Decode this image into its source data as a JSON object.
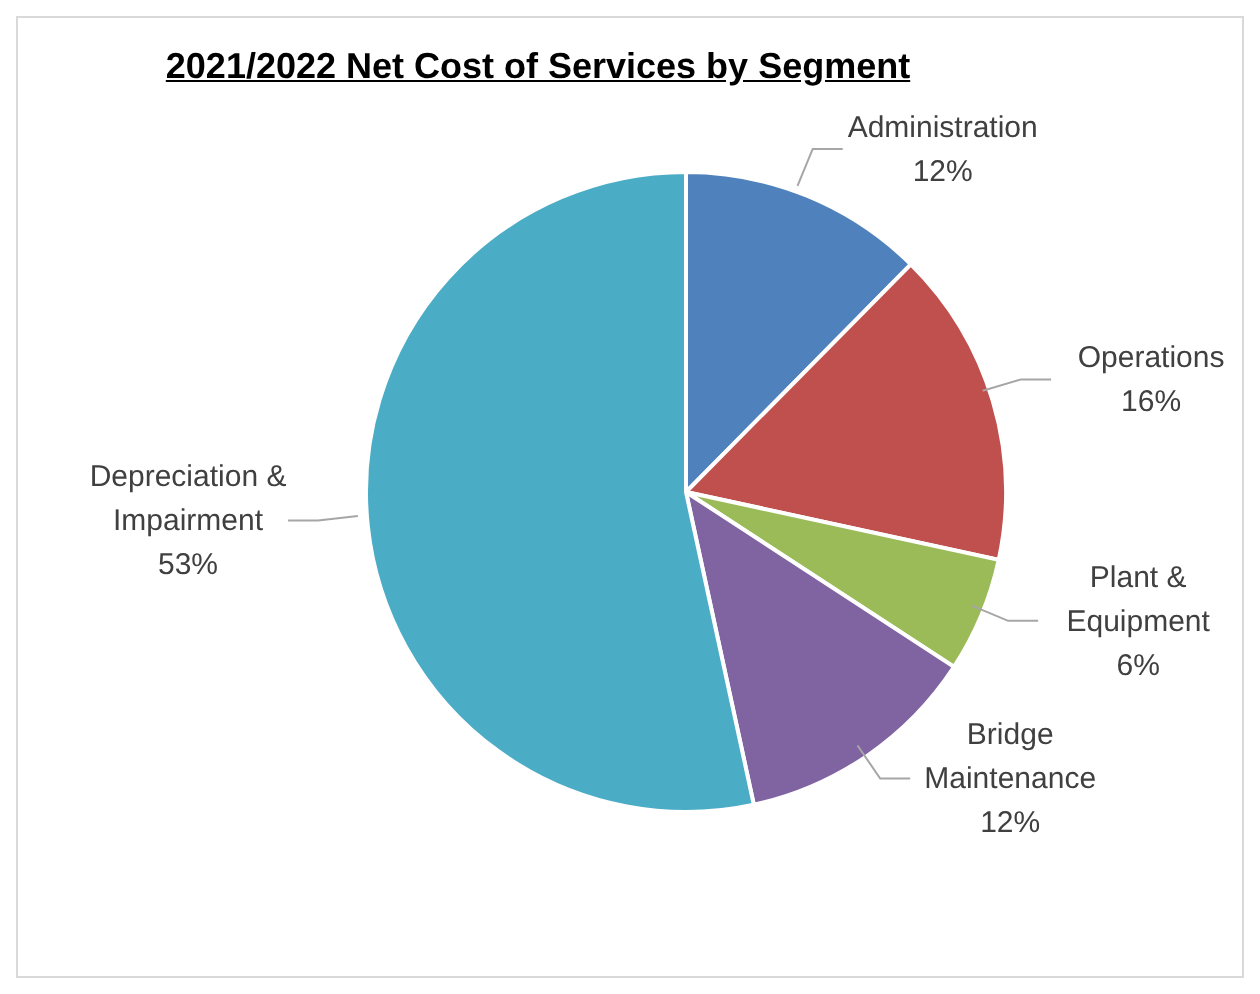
{
  "chart_data": {
    "type": "pie",
    "title": "2021/2022 Net Cost of Services by Segment",
    "categories": [
      "Administration",
      "Operations",
      "Plant & Equipment",
      "Bridge Maintenance",
      "Depreciation & Impairment"
    ],
    "values": [
      12.4,
      16.0,
      5.8,
      12.4,
      53.4
    ],
    "colors": [
      "#4f81bd",
      "#c0504d",
      "#9bbb59",
      "#8064a2",
      "#4bacc6"
    ],
    "value_labels": [
      "12%",
      "16%",
      "6%",
      "12%",
      "53%"
    ],
    "legend": false
  }
}
